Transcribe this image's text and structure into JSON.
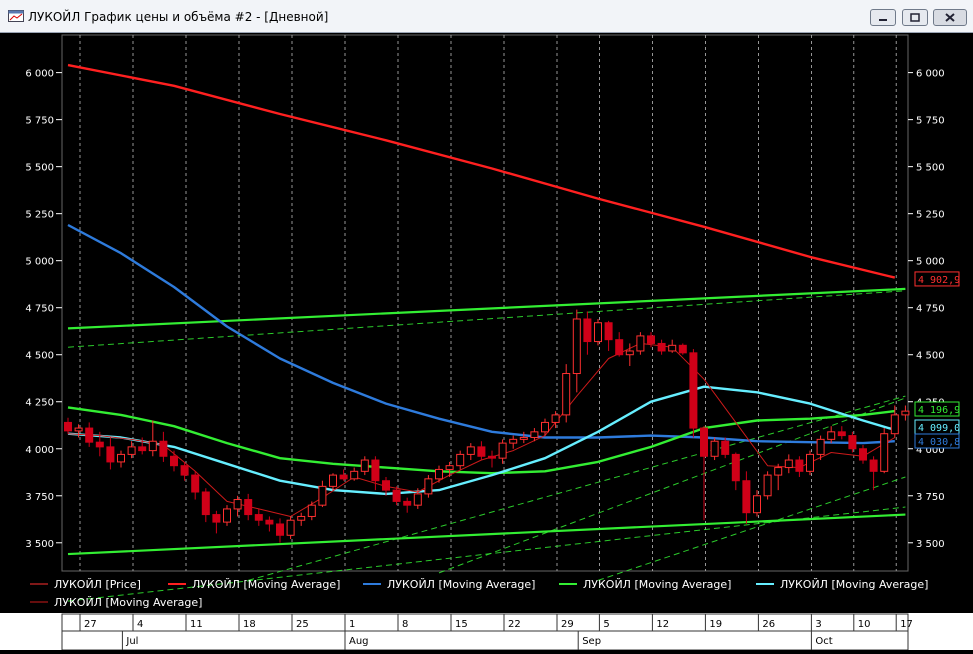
{
  "window": {
    "title": "ЛУКОЙЛ График цены и объёма #2 - [Дневной]"
  },
  "colors": {
    "price_up": "#ff3030",
    "price_down": "#d00018",
    "ma_red": "#ff2020",
    "ma_blue": "#2e7bdc",
    "ma_green": "#33ee33",
    "ma_cyan": "#66eeff",
    "ma_thin": "#cc1a1a",
    "channel": "#33ee33"
  },
  "legend": [
    {
      "label": "ЛУКОЙЛ [Price]",
      "color": "#ff3030",
      "thin": true
    },
    {
      "label": "ЛУКОЙЛ [Moving Average]",
      "color": "#ff2020",
      "thin": false
    },
    {
      "label": "ЛУКОЙЛ [Moving Average]",
      "color": "#2e7bdc",
      "thin": false
    },
    {
      "label": "ЛУКОЙЛ [Moving Average]",
      "color": "#33ee33",
      "thin": false
    },
    {
      "label": "ЛУКОЙЛ [Moving Average]",
      "color": "#66eeff",
      "thin": false
    },
    {
      "label": "ЛУКОЙЛ [Moving Average]",
      "color": "#cc1a1a",
      "thin": true
    }
  ],
  "chart_data": {
    "type": "candlestick",
    "ylim": [
      3350,
      6200
    ],
    "y_ticks": [
      3500,
      3750,
      4000,
      4250,
      4500,
      4750,
      5000,
      5250,
      5500,
      5750,
      6000
    ],
    "y_tick_labels": [
      "3 500",
      "3 750",
      "4 000",
      "4 250",
      "4 500",
      "4 750",
      "5 000",
      "5 250",
      "5 500",
      "5 750",
      "6 000"
    ],
    "day_labels": [
      {
        "i": 0,
        "label": "27"
      },
      {
        "i": 5,
        "label": "4"
      },
      {
        "i": 10,
        "label": "11"
      },
      {
        "i": 15,
        "label": "18"
      },
      {
        "i": 20,
        "label": "25"
      },
      {
        "i": 25,
        "label": "1"
      },
      {
        "i": 30,
        "label": "8"
      },
      {
        "i": 35,
        "label": "15"
      },
      {
        "i": 40,
        "label": "22"
      },
      {
        "i": 45,
        "label": "29"
      },
      {
        "i": 49,
        "label": "5"
      },
      {
        "i": 54,
        "label": "12"
      },
      {
        "i": 59,
        "label": "19"
      },
      {
        "i": 64,
        "label": "26"
      },
      {
        "i": 69,
        "label": "3"
      },
      {
        "i": 73,
        "label": "10"
      },
      {
        "i": 77,
        "label": "17"
      }
    ],
    "month_labels": [
      {
        "i": 4,
        "label": "Jul"
      },
      {
        "i": 25,
        "label": "Aug"
      },
      {
        "i": 47,
        "label": "Sep"
      },
      {
        "i": 69,
        "label": "Oct"
      }
    ],
    "candles": [
      {
        "o": 4140,
        "h": 4165,
        "l": 4080,
        "c": 4095
      },
      {
        "o": 4095,
        "h": 4130,
        "l": 4060,
        "c": 4110
      },
      {
        "o": 4110,
        "h": 4140,
        "l": 4010,
        "c": 4035
      },
      {
        "o": 4035,
        "h": 4090,
        "l": 3960,
        "c": 4010
      },
      {
        "o": 4010,
        "h": 4060,
        "l": 3890,
        "c": 3930
      },
      {
        "o": 3930,
        "h": 3990,
        "l": 3900,
        "c": 3970
      },
      {
        "o": 3970,
        "h": 4040,
        "l": 3950,
        "c": 4010
      },
      {
        "o": 4010,
        "h": 4060,
        "l": 3970,
        "c": 3990
      },
      {
        "o": 3990,
        "h": 4150,
        "l": 3960,
        "c": 4040
      },
      {
        "o": 4040,
        "h": 4090,
        "l": 3930,
        "c": 3960
      },
      {
        "o": 3960,
        "h": 3990,
        "l": 3880,
        "c": 3910
      },
      {
        "o": 3910,
        "h": 3930,
        "l": 3830,
        "c": 3860
      },
      {
        "o": 3860,
        "h": 3880,
        "l": 3730,
        "c": 3770
      },
      {
        "o": 3770,
        "h": 3790,
        "l": 3610,
        "c": 3650
      },
      {
        "o": 3650,
        "h": 3670,
        "l": 3550,
        "c": 3610
      },
      {
        "o": 3610,
        "h": 3700,
        "l": 3590,
        "c": 3680
      },
      {
        "o": 3680,
        "h": 3750,
        "l": 3640,
        "c": 3730
      },
      {
        "o": 3730,
        "h": 3760,
        "l": 3620,
        "c": 3650
      },
      {
        "o": 3650,
        "h": 3680,
        "l": 3590,
        "c": 3620
      },
      {
        "o": 3620,
        "h": 3640,
        "l": 3560,
        "c": 3600
      },
      {
        "o": 3600,
        "h": 3630,
        "l": 3500,
        "c": 3540
      },
      {
        "o": 3540,
        "h": 3640,
        "l": 3520,
        "c": 3620
      },
      {
        "o": 3620,
        "h": 3660,
        "l": 3590,
        "c": 3640
      },
      {
        "o": 3640,
        "h": 3720,
        "l": 3620,
        "c": 3700
      },
      {
        "o": 3700,
        "h": 3830,
        "l": 3690,
        "c": 3800
      },
      {
        "o": 3800,
        "h": 3870,
        "l": 3780,
        "c": 3860
      },
      {
        "o": 3860,
        "h": 3890,
        "l": 3830,
        "c": 3840
      },
      {
        "o": 3840,
        "h": 3900,
        "l": 3830,
        "c": 3880
      },
      {
        "o": 3880,
        "h": 3960,
        "l": 3860,
        "c": 3940
      },
      {
        "o": 3940,
        "h": 3960,
        "l": 3780,
        "c": 3830
      },
      {
        "o": 3830,
        "h": 3850,
        "l": 3750,
        "c": 3780
      },
      {
        "o": 3780,
        "h": 3800,
        "l": 3700,
        "c": 3720
      },
      {
        "o": 3720,
        "h": 3740,
        "l": 3660,
        "c": 3700
      },
      {
        "o": 3700,
        "h": 3790,
        "l": 3680,
        "c": 3760
      },
      {
        "o": 3760,
        "h": 3860,
        "l": 3740,
        "c": 3840
      },
      {
        "o": 3840,
        "h": 3910,
        "l": 3820,
        "c": 3890
      },
      {
        "o": 3890,
        "h": 3930,
        "l": 3850,
        "c": 3910
      },
      {
        "o": 3910,
        "h": 3990,
        "l": 3890,
        "c": 3970
      },
      {
        "o": 3970,
        "h": 4030,
        "l": 3940,
        "c": 4010
      },
      {
        "o": 4010,
        "h": 4040,
        "l": 3940,
        "c": 3960
      },
      {
        "o": 3960,
        "h": 3990,
        "l": 3900,
        "c": 3950
      },
      {
        "o": 3950,
        "h": 4050,
        "l": 3920,
        "c": 4030
      },
      {
        "o": 4030,
        "h": 4070,
        "l": 4000,
        "c": 4050
      },
      {
        "o": 4050,
        "h": 4090,
        "l": 4030,
        "c": 4060
      },
      {
        "o": 4060,
        "h": 4110,
        "l": 4040,
        "c": 4090
      },
      {
        "o": 4090,
        "h": 4160,
        "l": 4070,
        "c": 4140
      },
      {
        "o": 4140,
        "h": 4200,
        "l": 4110,
        "c": 4180
      },
      {
        "o": 4180,
        "h": 4450,
        "l": 4140,
        "c": 4400
      },
      {
        "o": 4400,
        "h": 4740,
        "l": 4300,
        "c": 4690
      },
      {
        "o": 4690,
        "h": 4730,
        "l": 4500,
        "c": 4570
      },
      {
        "o": 4570,
        "h": 4690,
        "l": 4550,
        "c": 4670
      },
      {
        "o": 4670,
        "h": 4680,
        "l": 4520,
        "c": 4580
      },
      {
        "o": 4580,
        "h": 4620,
        "l": 4490,
        "c": 4500
      },
      {
        "o": 4500,
        "h": 4560,
        "l": 4440,
        "c": 4520
      },
      {
        "o": 4520,
        "h": 4620,
        "l": 4500,
        "c": 4600
      },
      {
        "o": 4600,
        "h": 4620,
        "l": 4540,
        "c": 4560
      },
      {
        "o": 4560,
        "h": 4580,
        "l": 4500,
        "c": 4520
      },
      {
        "o": 4520,
        "h": 4580,
        "l": 4510,
        "c": 4550
      },
      {
        "o": 4550,
        "h": 4560,
        "l": 4500,
        "c": 4510
      },
      {
        "o": 4510,
        "h": 4530,
        "l": 4060,
        "c": 4110
      },
      {
        "o": 4110,
        "h": 4120,
        "l": 3620,
        "c": 3960
      },
      {
        "o": 3960,
        "h": 4060,
        "l": 3940,
        "c": 4040
      },
      {
        "o": 4040,
        "h": 4060,
        "l": 3950,
        "c": 3970
      },
      {
        "o": 3970,
        "h": 3980,
        "l": 3780,
        "c": 3830
      },
      {
        "o": 3830,
        "h": 3880,
        "l": 3600,
        "c": 3660
      },
      {
        "o": 3660,
        "h": 3780,
        "l": 3640,
        "c": 3750
      },
      {
        "o": 3750,
        "h": 3880,
        "l": 3730,
        "c": 3860
      },
      {
        "o": 3860,
        "h": 3920,
        "l": 3780,
        "c": 3900
      },
      {
        "o": 3900,
        "h": 3970,
        "l": 3870,
        "c": 3940
      },
      {
        "o": 3940,
        "h": 3960,
        "l": 3850,
        "c": 3880
      },
      {
        "o": 3880,
        "h": 3990,
        "l": 3860,
        "c": 3970
      },
      {
        "o": 3970,
        "h": 4070,
        "l": 3940,
        "c": 4050
      },
      {
        "o": 4050,
        "h": 4120,
        "l": 4030,
        "c": 4090
      },
      {
        "o": 4090,
        "h": 4120,
        "l": 4050,
        "c": 4070
      },
      {
        "o": 4070,
        "h": 4090,
        "l": 3980,
        "c": 4000
      },
      {
        "o": 4000,
        "h": 4020,
        "l": 3920,
        "c": 3940
      },
      {
        "o": 3940,
        "h": 3960,
        "l": 3780,
        "c": 3880
      },
      {
        "o": 3880,
        "h": 4110,
        "l": 3870,
        "c": 4080
      },
      {
        "o": 4080,
        "h": 4230,
        "l": 4060,
        "c": 4180
      },
      {
        "o": 4180,
        "h": 4230,
        "l": 4150,
        "c": 4200
      }
    ],
    "series": [
      {
        "key": "ma_red",
        "points": [
          [
            0,
            6040
          ],
          [
            10,
            5930
          ],
          [
            20,
            5780
          ],
          [
            30,
            5640
          ],
          [
            40,
            5490
          ],
          [
            50,
            5330
          ],
          [
            60,
            5180
          ],
          [
            70,
            5020
          ],
          [
            78,
            4910
          ]
        ]
      },
      {
        "key": "ma_blue",
        "points": [
          [
            0,
            5190
          ],
          [
            5,
            5040
          ],
          [
            10,
            4860
          ],
          [
            15,
            4650
          ],
          [
            20,
            4480
          ],
          [
            25,
            4350
          ],
          [
            30,
            4240
          ],
          [
            35,
            4160
          ],
          [
            40,
            4090
          ],
          [
            45,
            4060
          ],
          [
            50,
            4060
          ],
          [
            55,
            4070
          ],
          [
            60,
            4060
          ],
          [
            65,
            4040
          ],
          [
            70,
            4035
          ],
          [
            75,
            4030
          ],
          [
            78,
            4040
          ]
        ]
      },
      {
        "key": "ma_green",
        "points": [
          [
            0,
            4220
          ],
          [
            5,
            4180
          ],
          [
            10,
            4120
          ],
          [
            15,
            4030
          ],
          [
            20,
            3950
          ],
          [
            25,
            3920
          ],
          [
            30,
            3900
          ],
          [
            35,
            3880
          ],
          [
            40,
            3870
          ],
          [
            45,
            3880
          ],
          [
            50,
            3930
          ],
          [
            55,
            4010
          ],
          [
            60,
            4110
          ],
          [
            65,
            4150
          ],
          [
            70,
            4160
          ],
          [
            75,
            4180
          ],
          [
            78,
            4200
          ]
        ]
      },
      {
        "key": "ma_cyan",
        "points": [
          [
            0,
            4080
          ],
          [
            5,
            4060
          ],
          [
            10,
            4010
          ],
          [
            15,
            3920
          ],
          [
            20,
            3830
          ],
          [
            25,
            3780
          ],
          [
            30,
            3760
          ],
          [
            35,
            3780
          ],
          [
            40,
            3860
          ],
          [
            45,
            3950
          ],
          [
            50,
            4090
          ],
          [
            55,
            4250
          ],
          [
            60,
            4330
          ],
          [
            65,
            4300
          ],
          [
            70,
            4240
          ],
          [
            75,
            4150
          ],
          [
            78,
            4100
          ]
        ]
      },
      {
        "key": "ma_thin",
        "points": [
          [
            0,
            4080
          ],
          [
            3,
            4070
          ],
          [
            6,
            4050
          ],
          [
            9,
            4020
          ],
          [
            12,
            3880
          ],
          [
            15,
            3720
          ],
          [
            18,
            3680
          ],
          [
            21,
            3640
          ],
          [
            24,
            3740
          ],
          [
            27,
            3850
          ],
          [
            30,
            3800
          ],
          [
            33,
            3770
          ],
          [
            36,
            3860
          ],
          [
            39,
            3940
          ],
          [
            42,
            3990
          ],
          [
            45,
            4070
          ],
          [
            48,
            4280
          ],
          [
            51,
            4480
          ],
          [
            54,
            4560
          ],
          [
            57,
            4540
          ],
          [
            60,
            4370
          ],
          [
            63,
            4140
          ],
          [
            66,
            3910
          ],
          [
            69,
            3900
          ],
          [
            72,
            3980
          ],
          [
            75,
            3960
          ],
          [
            78,
            4060
          ]
        ]
      }
    ],
    "channels": [
      {
        "dash": false,
        "p1": [
          0,
          4640
        ],
        "p2": [
          79,
          4850
        ]
      },
      {
        "dash": false,
        "p1": [
          0,
          3440
        ],
        "p2": [
          79,
          3650
        ]
      },
      {
        "dash": true,
        "p1": [
          0,
          4540
        ],
        "p2": [
          79,
          4840
        ]
      },
      {
        "dash": true,
        "p1": [
          0,
          3190
        ],
        "p2": [
          79,
          3690
        ]
      },
      {
        "dash": true,
        "p1": [
          17,
          3300
        ],
        "p2": [
          79,
          4280
        ]
      },
      {
        "dash": true,
        "p1": [
          35,
          3340
        ],
        "p2": [
          79,
          4270
        ]
      },
      {
        "dash": true,
        "p1": [
          50,
          3300
        ],
        "p2": [
          79,
          3850
        ]
      }
    ],
    "value_labels": [
      {
        "value": 4902.9,
        "text": "4 902,9",
        "color": "#ff3030"
      },
      {
        "value": 4196.9,
        "text": "4 196,9",
        "color": "#33ee33"
      },
      {
        "value": 4099.0,
        "text": "4 099,0",
        "color": "#66eeff"
      },
      {
        "value": 4030.8,
        "text": "4 030,8",
        "color": "#2e7bdc"
      }
    ]
  }
}
